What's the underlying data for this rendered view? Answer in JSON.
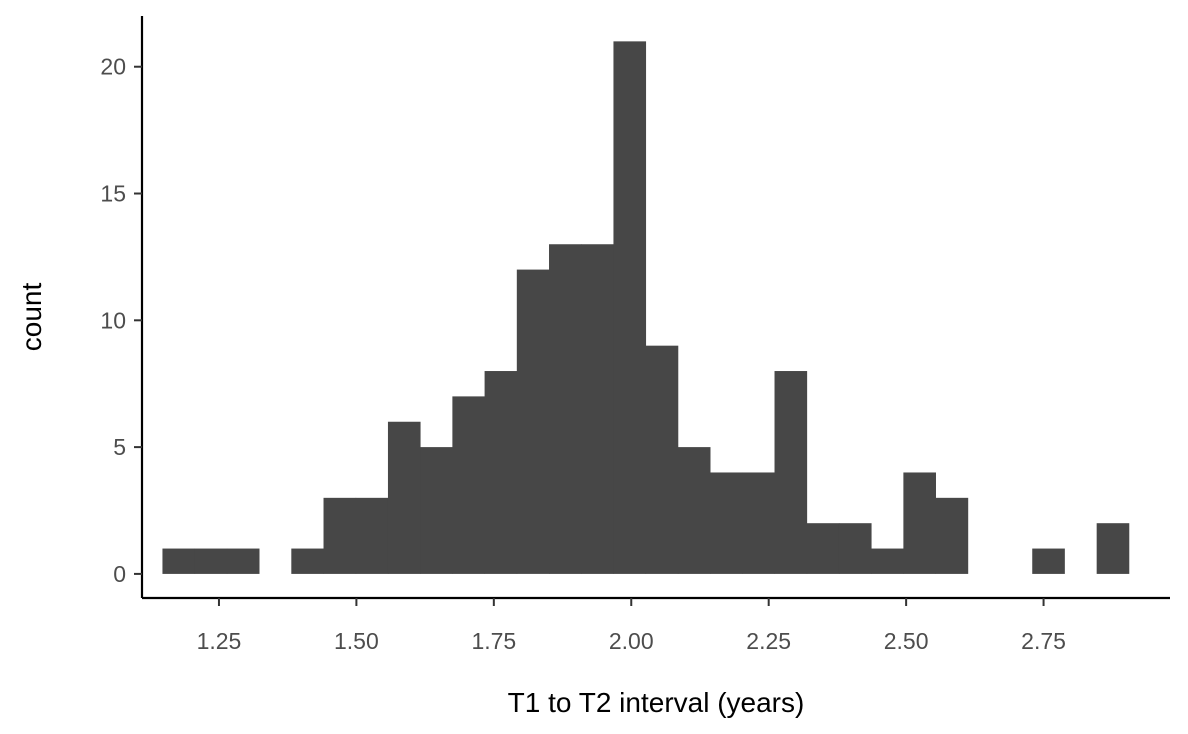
{
  "chart_data": {
    "type": "bar",
    "subtype": "histogram",
    "title": "",
    "xlabel": "T1 to T2 interval (years)",
    "ylabel": "count",
    "bar_color": "#474747",
    "xlim": [
      1.11,
      2.98
    ],
    "ylim": [
      -0.95,
      22
    ],
    "bin_width": 0.0586,
    "bins": [
      {
        "x0": 1.1472,
        "x1": 1.2058,
        "count": 1
      },
      {
        "x0": 1.2058,
        "x1": 1.2644,
        "count": 1
      },
      {
        "x0": 1.2644,
        "x1": 1.323,
        "count": 1
      },
      {
        "x0": 1.323,
        "x1": 1.3816,
        "count": 0
      },
      {
        "x0": 1.3816,
        "x1": 1.4402,
        "count": 1
      },
      {
        "x0": 1.4402,
        "x1": 1.4988,
        "count": 3
      },
      {
        "x0": 1.4988,
        "x1": 1.5574,
        "count": 3
      },
      {
        "x0": 1.5574,
        "x1": 1.616,
        "count": 6
      },
      {
        "x0": 1.616,
        "x1": 1.6746,
        "count": 5
      },
      {
        "x0": 1.6746,
        "x1": 1.7332,
        "count": 7
      },
      {
        "x0": 1.7332,
        "x1": 1.7918,
        "count": 8
      },
      {
        "x0": 1.7918,
        "x1": 1.8504,
        "count": 12
      },
      {
        "x0": 1.8504,
        "x1": 1.909,
        "count": 13
      },
      {
        "x0": 1.909,
        "x1": 1.9676,
        "count": 13
      },
      {
        "x0": 1.9676,
        "x1": 2.0262,
        "count": 21
      },
      {
        "x0": 2.0262,
        "x1": 2.0848,
        "count": 9
      },
      {
        "x0": 2.0848,
        "x1": 2.1434,
        "count": 5
      },
      {
        "x0": 2.1434,
        "x1": 2.202,
        "count": 4
      },
      {
        "x0": 2.202,
        "x1": 2.2606,
        "count": 4
      },
      {
        "x0": 2.2606,
        "x1": 2.3192,
        "count": 8
      },
      {
        "x0": 2.3192,
        "x1": 2.3778,
        "count": 2
      },
      {
        "x0": 2.3778,
        "x1": 2.4364,
        "count": 2
      },
      {
        "x0": 2.4364,
        "x1": 2.495,
        "count": 1
      },
      {
        "x0": 2.495,
        "x1": 2.5536,
        "count": 4
      },
      {
        "x0": 2.5536,
        "x1": 2.6122,
        "count": 3
      },
      {
        "x0": 2.6122,
        "x1": 2.6708,
        "count": 0
      },
      {
        "x0": 2.6708,
        "x1": 2.7294,
        "count": 0
      },
      {
        "x0": 2.7294,
        "x1": 2.788,
        "count": 1
      },
      {
        "x0": 2.788,
        "x1": 2.8466,
        "count": 0
      },
      {
        "x0": 2.8466,
        "x1": 2.9052,
        "count": 2
      }
    ],
    "x_ticks": [
      {
        "value": 1.25,
        "label": "1.25"
      },
      {
        "value": 1.5,
        "label": "1.50"
      },
      {
        "value": 1.75,
        "label": "1.75"
      },
      {
        "value": 2.0,
        "label": "2.00"
      },
      {
        "value": 2.25,
        "label": "2.25"
      },
      {
        "value": 2.5,
        "label": "2.50"
      },
      {
        "value": 2.75,
        "label": "2.75"
      }
    ],
    "y_ticks": [
      {
        "value": 0,
        "label": "0"
      },
      {
        "value": 5,
        "label": "5"
      },
      {
        "value": 10,
        "label": "10"
      },
      {
        "value": 15,
        "label": "15"
      },
      {
        "value": 20,
        "label": "20"
      }
    ],
    "grid": false,
    "legend": "none"
  }
}
